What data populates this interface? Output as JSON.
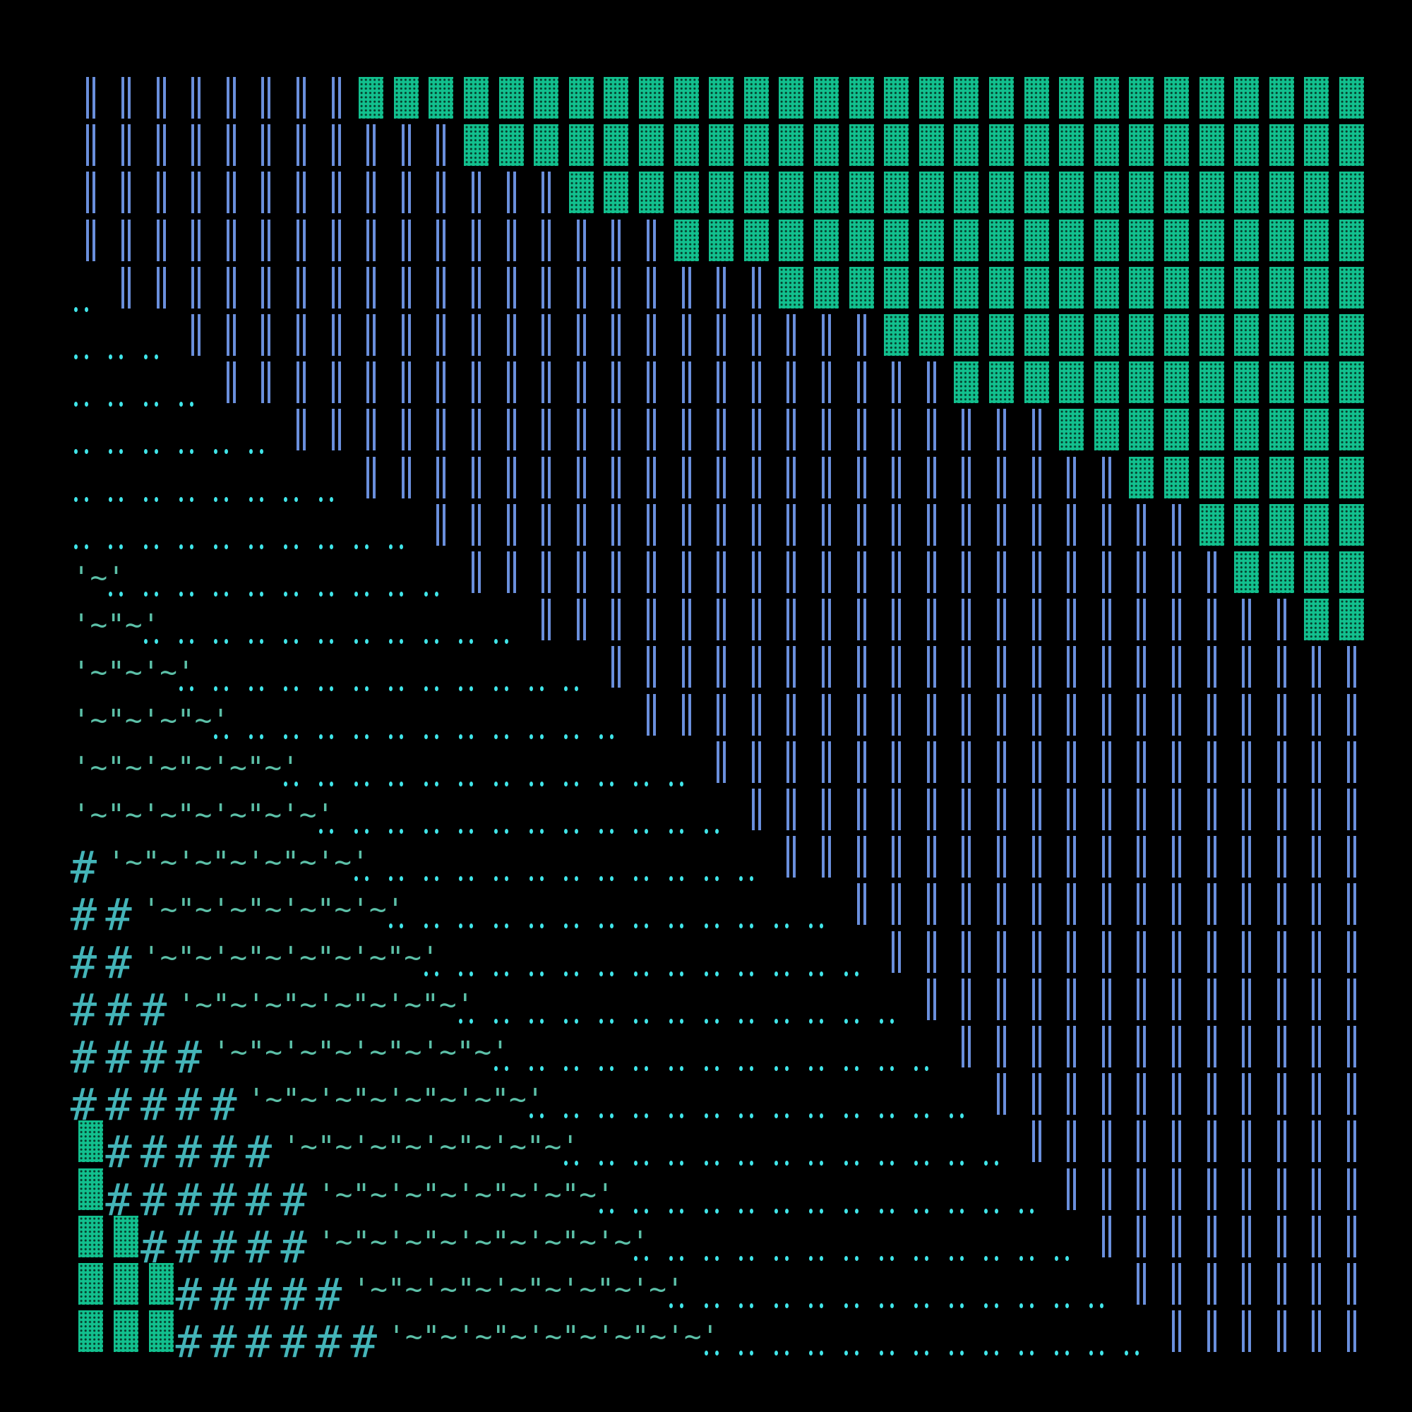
{
  "glyphs": {
    "hash": "#",
    "bar": "‖",
    "block": "▓",
    "dots": ".."
  },
  "colors": {
    "background": "#000000",
    "block": "#12c08e",
    "bar": "#6a8fdc",
    "dot": "#40e6ea",
    "hash": "#44b4b8",
    "tilde": "#5cc0a8"
  },
  "columns": 37,
  "rows": [
    {
      "left_blocks": 0,
      "hashes": 0,
      "tildes": "",
      "bar_start": 0,
      "block_start": 8
    },
    {
      "left_blocks": 0,
      "hashes": 0,
      "tildes": "",
      "bar_start": 0,
      "block_start": 11
    },
    {
      "left_blocks": 0,
      "hashes": 0,
      "tildes": "",
      "bar_start": 0,
      "block_start": 14
    },
    {
      "left_blocks": 0,
      "hashes": 0,
      "tildes": "",
      "bar_start": 0,
      "block_start": 17
    },
    {
      "left_blocks": 0,
      "hashes": 0,
      "tildes": "",
      "bar_start": 1,
      "block_start": 20
    },
    {
      "left_blocks": 0,
      "hashes": 0,
      "tildes": "",
      "bar_start": 3,
      "block_start": 23
    },
    {
      "left_blocks": 0,
      "hashes": 0,
      "tildes": "",
      "bar_start": 4,
      "block_start": 25
    },
    {
      "left_blocks": 0,
      "hashes": 0,
      "tildes": "",
      "bar_start": 6,
      "block_start": 28
    },
    {
      "left_blocks": 0,
      "hashes": 0,
      "tildes": "",
      "bar_start": 8,
      "block_start": 30
    },
    {
      "left_blocks": 0,
      "hashes": 0,
      "tildes": "",
      "bar_start": 10,
      "block_start": 32
    },
    {
      "left_blocks": 0,
      "hashes": 0,
      "tildes": "'~'",
      "bar_start": 11,
      "block_start": 33
    },
    {
      "left_blocks": 0,
      "hashes": 0,
      "tildes": "'~\"~'",
      "bar_start": 13,
      "block_start": 35
    },
    {
      "left_blocks": 0,
      "hashes": 0,
      "tildes": "'~\"~'~'",
      "bar_start": 15,
      "block_start": 37
    },
    {
      "left_blocks": 0,
      "hashes": 0,
      "tildes": "'~\"~'~\"~'",
      "bar_start": 16,
      "block_start": 37
    },
    {
      "left_blocks": 0,
      "hashes": 0,
      "tildes": "'~\"~'~\"~'~\"~'",
      "bar_start": 18,
      "block_start": 37
    },
    {
      "left_blocks": 0,
      "hashes": 0,
      "tildes": "'~\"~'~\"~'~\"~'~'",
      "bar_start": 19,
      "block_start": 37
    },
    {
      "left_blocks": 0,
      "hashes": 1,
      "tildes": "'~\"~'~\"~'~\"~'~'",
      "bar_start": 20,
      "block_start": 37
    },
    {
      "left_blocks": 0,
      "hashes": 2,
      "tildes": "'~\"~'~\"~'~\"~'~'",
      "bar_start": 22,
      "block_start": 37
    },
    {
      "left_blocks": 0,
      "hashes": 2,
      "tildes": "'~\"~'~\"~'~\"~'~\"~'",
      "bar_start": 23,
      "block_start": 37
    },
    {
      "left_blocks": 0,
      "hashes": 3,
      "tildes": "'~\"~'~\"~'~\"~'~\"~'",
      "bar_start": 24,
      "block_start": 37
    },
    {
      "left_blocks": 0,
      "hashes": 4,
      "tildes": "'~\"~'~\"~'~\"~'~\"~'",
      "bar_start": 25,
      "block_start": 37
    },
    {
      "left_blocks": 0,
      "hashes": 5,
      "tildes": "'~\"~'~\"~'~\"~'~\"~'",
      "bar_start": 26,
      "block_start": 37
    },
    {
      "left_blocks": 1,
      "hashes": 5,
      "tildes": "'~\"~'~\"~'~\"~'~\"~'",
      "bar_start": 27,
      "block_start": 37
    },
    {
      "left_blocks": 1,
      "hashes": 6,
      "tildes": "'~\"~'~\"~'~\"~'~\"~'",
      "bar_start": 28,
      "block_start": 37
    },
    {
      "left_blocks": 2,
      "hashes": 5,
      "tildes": "'~\"~'~\"~'~\"~'~\"~'~'",
      "bar_start": 29,
      "block_start": 37
    },
    {
      "left_blocks": 3,
      "hashes": 5,
      "tildes": "'~\"~'~\"~'~\"~'~\"~'~'",
      "bar_start": 30,
      "block_start": 37
    },
    {
      "left_blocks": 3,
      "hashes": 6,
      "tildes": "'~\"~'~\"~'~\"~'~\"~'~'",
      "bar_start": 31,
      "block_start": 37
    }
  ]
}
